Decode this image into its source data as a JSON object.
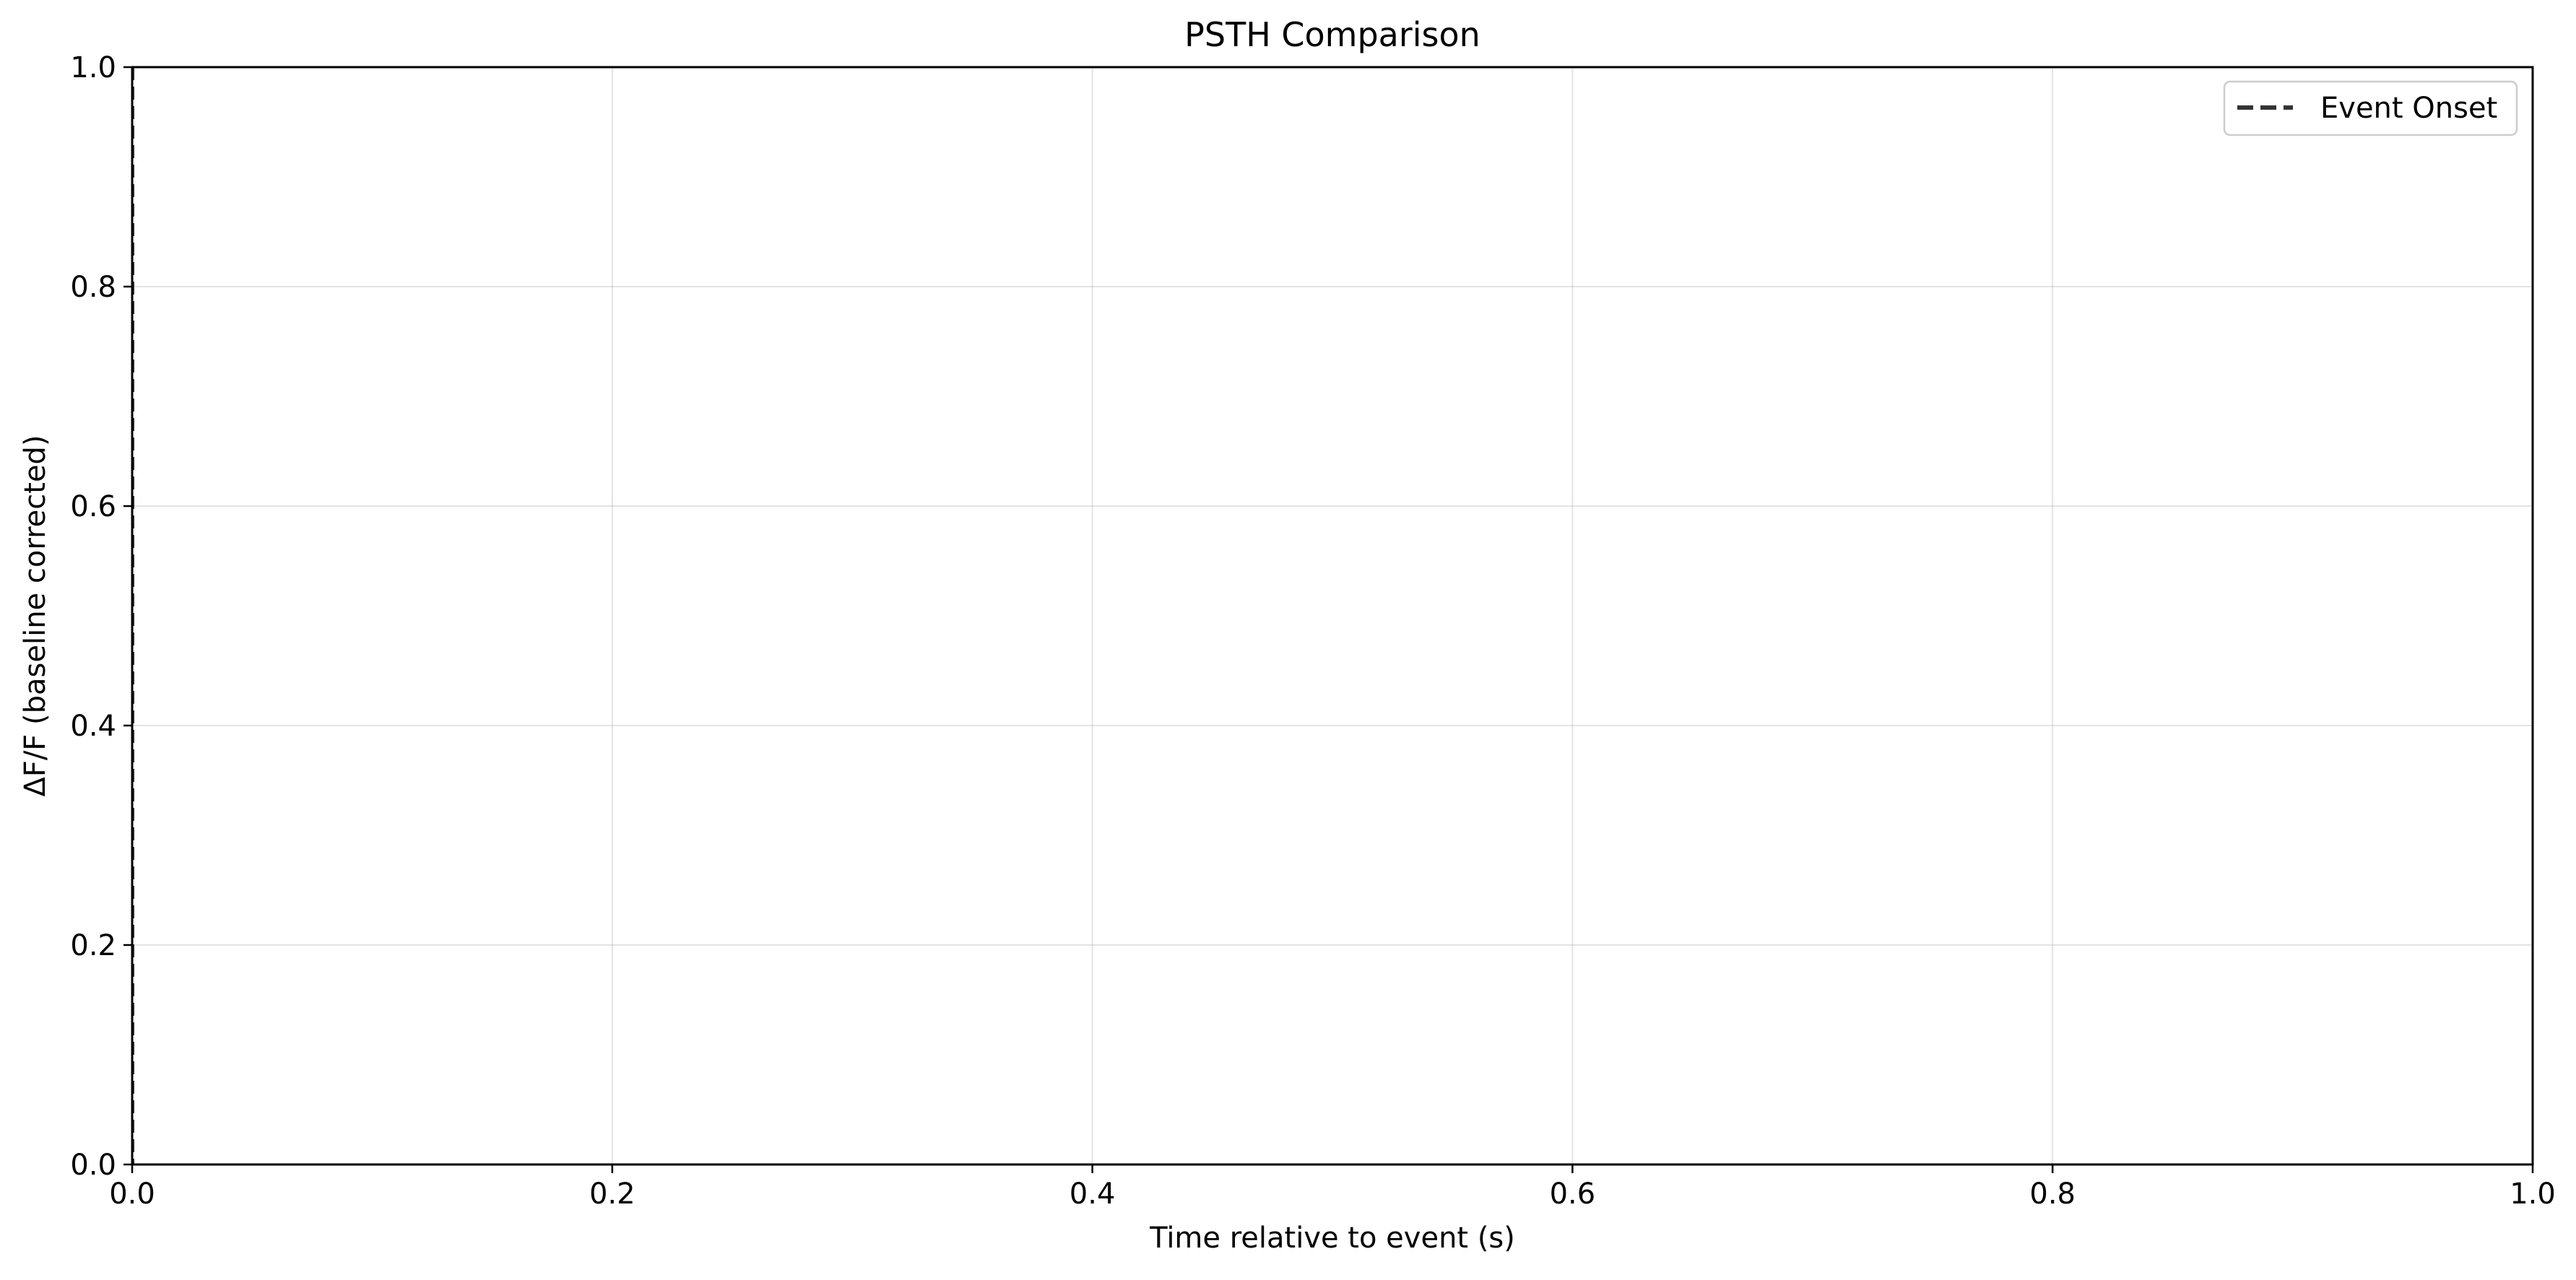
{
  "chart_data": {
    "type": "line",
    "title": "PSTH Comparison",
    "xlabel": "Time relative to event (s)",
    "ylabel": "ΔF/F (baseline corrected)",
    "xlim": [
      0.0,
      1.0
    ],
    "ylim": [
      0.0,
      1.0
    ],
    "x_ticks": [
      0.0,
      0.2,
      0.4,
      0.6,
      0.8,
      1.0
    ],
    "y_ticks": [
      0.0,
      0.2,
      0.4,
      0.6,
      0.8,
      1.0
    ],
    "x_tick_labels": [
      "0.0",
      "0.2",
      "0.4",
      "0.6",
      "0.8",
      "1.0"
    ],
    "y_tick_labels": [
      "0.0",
      "0.2",
      "0.4",
      "0.6",
      "0.8",
      "1.0"
    ],
    "grid": true,
    "legend_position": "top-right",
    "series": [
      {
        "name": "Event Onset",
        "style": "dashed",
        "orientation": "vertical",
        "x": 0.0,
        "color": "#333333"
      }
    ]
  }
}
